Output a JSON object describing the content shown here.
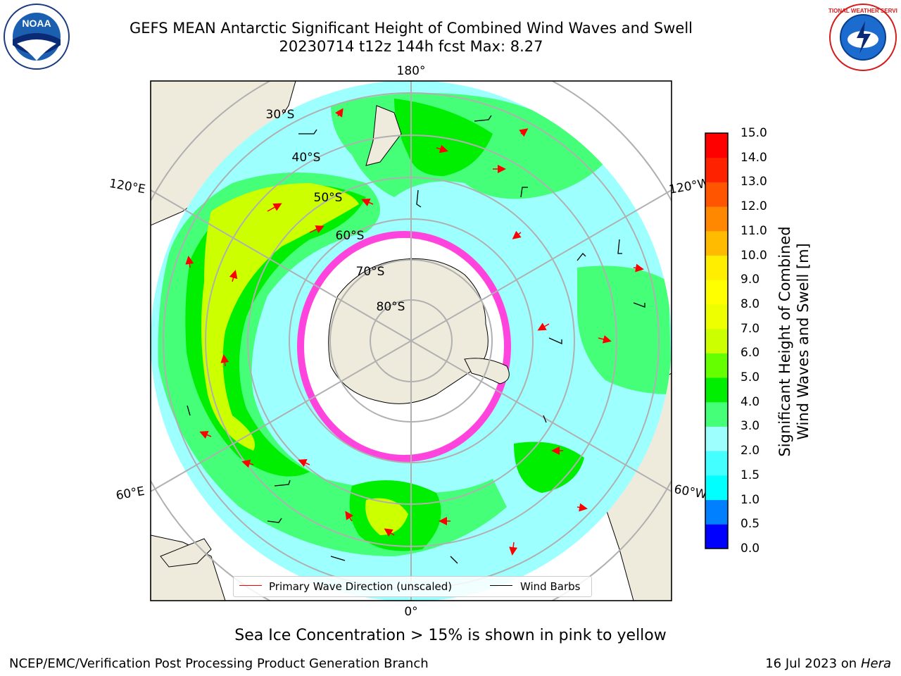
{
  "header": {
    "title_line1": "GEFS MEAN Antarctic Significant Height of Combined Wind Waves and Swell",
    "title_line2": "20230714 t12z 144h fcst   Max: 8.27"
  },
  "logos": {
    "left": "NOAA",
    "right": "NATIONAL WEATHER SERVICE"
  },
  "map": {
    "projection": "south-polar-stereographic",
    "longitude_labels": [
      "180°",
      "120°E",
      "120°W",
      "60°E",
      "60°W",
      "0°"
    ],
    "latitude_labels": [
      "30°S",
      "40°S",
      "50°S",
      "60°S",
      "70°S",
      "80°S"
    ],
    "colors": {
      "land": "#efebdc",
      "ocean_low": "#9effff",
      "ice": "#ff44dd",
      "grid": "#b0b0b0"
    }
  },
  "legend": {
    "wave_label": "Primary Wave Direction (unscaled)",
    "wind_label": "Wind Barbs",
    "wave_color": "#ff0000",
    "wind_color": "#000000"
  },
  "colorbar": {
    "title_line1": "Significant Height of Combined",
    "title_line2": "Wind Waves and Swell [m]",
    "tick_labels": [
      "0.0",
      "0.5",
      "1.0",
      "1.5",
      "2.0",
      "3.0",
      "4.0",
      "5.0",
      "6.0",
      "7.0",
      "8.0",
      "9.0",
      "10.0",
      "11.0",
      "12.0",
      "13.0",
      "14.0",
      "15.0"
    ],
    "bin_colors": [
      "#0000ff",
      "#0080ff",
      "#00ffff",
      "#44ffff",
      "#9effff",
      "#44ff77",
      "#00ee00",
      "#66ff00",
      "#ccff00",
      "#eeff00",
      "#ffff00",
      "#ffee00",
      "#ffbb00",
      "#ff8800",
      "#ff5500",
      "#ff2200",
      "#ff0000"
    ]
  },
  "footer": {
    "note": "Sea Ice Concentration > 15% is shown in pink to yellow",
    "credit": "NCEP/EMC/Verification Post Processing Product Generation Branch",
    "date_text": "16 Jul 2023 on",
    "machine": "Hera"
  }
}
